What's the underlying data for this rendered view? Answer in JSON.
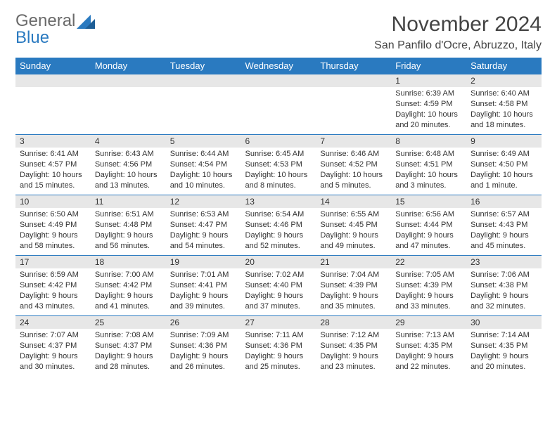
{
  "logo": {
    "text1": "General",
    "text2": "Blue"
  },
  "title": "November 2024",
  "location": "San Panfilo d'Ocre, Abruzzo, Italy",
  "colors": {
    "header_bg": "#2a7ac0",
    "header_text": "#ffffff",
    "daynum_bg": "#e7e7e7",
    "border": "#2a7ac0",
    "page_bg": "#ffffff",
    "text": "#333333",
    "logo_gray": "#6a6a6a",
    "logo_blue": "#2a7ac0"
  },
  "weekdays": [
    "Sunday",
    "Monday",
    "Tuesday",
    "Wednesday",
    "Thursday",
    "Friday",
    "Saturday"
  ],
  "weeks": [
    [
      null,
      null,
      null,
      null,
      null,
      {
        "n": "1",
        "sunrise": "6:39 AM",
        "sunset": "4:59 PM",
        "daylight": "10 hours and 20 minutes."
      },
      {
        "n": "2",
        "sunrise": "6:40 AM",
        "sunset": "4:58 PM",
        "daylight": "10 hours and 18 minutes."
      }
    ],
    [
      {
        "n": "3",
        "sunrise": "6:41 AM",
        "sunset": "4:57 PM",
        "daylight": "10 hours and 15 minutes."
      },
      {
        "n": "4",
        "sunrise": "6:43 AM",
        "sunset": "4:56 PM",
        "daylight": "10 hours and 13 minutes."
      },
      {
        "n": "5",
        "sunrise": "6:44 AM",
        "sunset": "4:54 PM",
        "daylight": "10 hours and 10 minutes."
      },
      {
        "n": "6",
        "sunrise": "6:45 AM",
        "sunset": "4:53 PM",
        "daylight": "10 hours and 8 minutes."
      },
      {
        "n": "7",
        "sunrise": "6:46 AM",
        "sunset": "4:52 PM",
        "daylight": "10 hours and 5 minutes."
      },
      {
        "n": "8",
        "sunrise": "6:48 AM",
        "sunset": "4:51 PM",
        "daylight": "10 hours and 3 minutes."
      },
      {
        "n": "9",
        "sunrise": "6:49 AM",
        "sunset": "4:50 PM",
        "daylight": "10 hours and 1 minute."
      }
    ],
    [
      {
        "n": "10",
        "sunrise": "6:50 AM",
        "sunset": "4:49 PM",
        "daylight": "9 hours and 58 minutes."
      },
      {
        "n": "11",
        "sunrise": "6:51 AM",
        "sunset": "4:48 PM",
        "daylight": "9 hours and 56 minutes."
      },
      {
        "n": "12",
        "sunrise": "6:53 AM",
        "sunset": "4:47 PM",
        "daylight": "9 hours and 54 minutes."
      },
      {
        "n": "13",
        "sunrise": "6:54 AM",
        "sunset": "4:46 PM",
        "daylight": "9 hours and 52 minutes."
      },
      {
        "n": "14",
        "sunrise": "6:55 AM",
        "sunset": "4:45 PM",
        "daylight": "9 hours and 49 minutes."
      },
      {
        "n": "15",
        "sunrise": "6:56 AM",
        "sunset": "4:44 PM",
        "daylight": "9 hours and 47 minutes."
      },
      {
        "n": "16",
        "sunrise": "6:57 AM",
        "sunset": "4:43 PM",
        "daylight": "9 hours and 45 minutes."
      }
    ],
    [
      {
        "n": "17",
        "sunrise": "6:59 AM",
        "sunset": "4:42 PM",
        "daylight": "9 hours and 43 minutes."
      },
      {
        "n": "18",
        "sunrise": "7:00 AM",
        "sunset": "4:42 PM",
        "daylight": "9 hours and 41 minutes."
      },
      {
        "n": "19",
        "sunrise": "7:01 AM",
        "sunset": "4:41 PM",
        "daylight": "9 hours and 39 minutes."
      },
      {
        "n": "20",
        "sunrise": "7:02 AM",
        "sunset": "4:40 PM",
        "daylight": "9 hours and 37 minutes."
      },
      {
        "n": "21",
        "sunrise": "7:04 AM",
        "sunset": "4:39 PM",
        "daylight": "9 hours and 35 minutes."
      },
      {
        "n": "22",
        "sunrise": "7:05 AM",
        "sunset": "4:39 PM",
        "daylight": "9 hours and 33 minutes."
      },
      {
        "n": "23",
        "sunrise": "7:06 AM",
        "sunset": "4:38 PM",
        "daylight": "9 hours and 32 minutes."
      }
    ],
    [
      {
        "n": "24",
        "sunrise": "7:07 AM",
        "sunset": "4:37 PM",
        "daylight": "9 hours and 30 minutes."
      },
      {
        "n": "25",
        "sunrise": "7:08 AM",
        "sunset": "4:37 PM",
        "daylight": "9 hours and 28 minutes."
      },
      {
        "n": "26",
        "sunrise": "7:09 AM",
        "sunset": "4:36 PM",
        "daylight": "9 hours and 26 minutes."
      },
      {
        "n": "27",
        "sunrise": "7:11 AM",
        "sunset": "4:36 PM",
        "daylight": "9 hours and 25 minutes."
      },
      {
        "n": "28",
        "sunrise": "7:12 AM",
        "sunset": "4:35 PM",
        "daylight": "9 hours and 23 minutes."
      },
      {
        "n": "29",
        "sunrise": "7:13 AM",
        "sunset": "4:35 PM",
        "daylight": "9 hours and 22 minutes."
      },
      {
        "n": "30",
        "sunrise": "7:14 AM",
        "sunset": "4:35 PM",
        "daylight": "9 hours and 20 minutes."
      }
    ]
  ],
  "labels": {
    "sunrise": "Sunrise:",
    "sunset": "Sunset:",
    "daylight": "Daylight:"
  }
}
